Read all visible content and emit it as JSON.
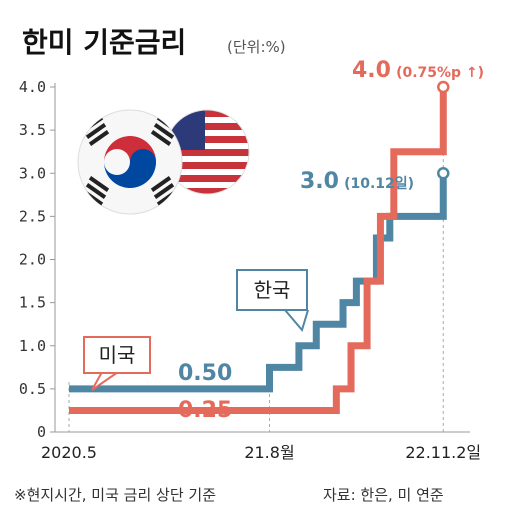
{
  "title": "한미 기준금리",
  "unit": "(단위:%)",
  "footnote_left": "※현지시간, 미국 금리 상단 기준",
  "footnote_right": "자료: 한은, 미 연준",
  "colors": {
    "us": "#e46a5c",
    "korea": "#4f86a4",
    "axis": "#999999",
    "text": "#222222"
  },
  "annotations": {
    "us_final_value": "4.0",
    "us_final_note": "(0.75%p ↑)",
    "korea_final_value": "3.0",
    "korea_final_note": "(10.12일)",
    "korea_start_value": "0.50",
    "us_start_value": "0.25"
  },
  "icons": [
    "korea-flag-icon",
    "usa-flag-icon"
  ],
  "chart_data": {
    "type": "line",
    "step": true,
    "ylim": [
      0,
      4.0
    ],
    "yticks": [
      "0",
      "0.5",
      "1.0",
      "1.5",
      "2.0",
      "2.5",
      "3.0",
      "3.5",
      "4.0"
    ],
    "xticks": [
      "2020.5",
      "21.8월",
      "22.11.2일"
    ],
    "xlim": [
      0,
      30
    ],
    "series": [
      {
        "name": "한국",
        "x": [
          0,
          15,
          17.2,
          18.5,
          20.5,
          21.5,
          23.0,
          24.0,
          24.9,
          25.5,
          26.8,
          28.0
        ],
        "values": [
          0.5,
          0.75,
          1.0,
          1.25,
          1.5,
          1.75,
          2.25,
          2.5,
          2.5,
          2.5,
          2.5,
          3.0
        ]
      },
      {
        "name": "미국",
        "x": [
          0,
          20.0,
          21.1,
          22.3,
          23.3,
          24.3,
          25.9,
          28.0
        ],
        "values": [
          0.25,
          0.5,
          1.0,
          1.75,
          2.5,
          3.25,
          3.25,
          4.0
        ]
      }
    ]
  }
}
